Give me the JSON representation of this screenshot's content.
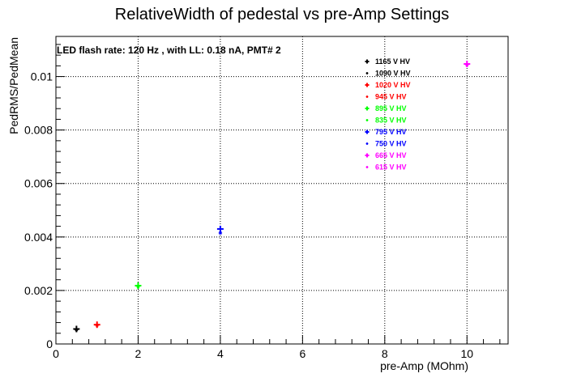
{
  "chart_data": {
    "type": "scatter",
    "title": "RelativeWidth of pedestal vs pre-Amp Settings",
    "annotation": "LED flash rate: 120 Hz , with LL: 0.18 nA, PMT# 2",
    "xlabel": "pre-Amp (MOhm)",
    "ylabel": "PedRMS/PedMean",
    "xlim": [
      0,
      11
    ],
    "ylim": [
      0,
      0.0115
    ],
    "xticks": [
      0,
      2,
      4,
      6,
      8,
      10
    ],
    "xtick_labels": [
      "0",
      "2",
      "4",
      "6",
      "8",
      "10"
    ],
    "yticks": [
      0,
      0.002,
      0.004,
      0.006,
      0.008,
      0.01
    ],
    "ytick_labels": [
      "0",
      "0.002",
      "0.004",
      "0.006",
      "0.008",
      "0.01"
    ],
    "grid": true,
    "legend_position": "top-right",
    "series": [
      {
        "name": "1165 V HV",
        "color": "#000000",
        "marker": "plus",
        "x": [
          0.5
        ],
        "y": [
          0.00056
        ]
      },
      {
        "name": "1090 V HV",
        "color": "#000000",
        "marker": "star",
        "x": [
          0.5
        ],
        "y": [
          0.00053
        ]
      },
      {
        "name": "1020 V HV",
        "color": "#ff0000",
        "marker": "plus",
        "x": [
          1
        ],
        "y": [
          0.00072
        ]
      },
      {
        "name": "945 V HV",
        "color": "#ff0000",
        "marker": "star",
        "x": [
          1
        ],
        "y": [
          0.0007
        ]
      },
      {
        "name": "895 V HV",
        "color": "#00ff00",
        "marker": "plus",
        "x": [
          2
        ],
        "y": [
          0.00218
        ]
      },
      {
        "name": "835 V HV",
        "color": "#00ff00",
        "marker": "star",
        "x": [
          2
        ],
        "y": [
          0.00215
        ]
      },
      {
        "name": "795 V HV",
        "color": "#0000ff",
        "marker": "plus",
        "x": [
          4
        ],
        "y": [
          0.0043
        ]
      },
      {
        "name": "750 V HV",
        "color": "#0000ff",
        "marker": "star",
        "x": [
          4
        ],
        "y": [
          0.00415
        ]
      },
      {
        "name": "665 V HV",
        "color": "#ff00ff",
        "marker": "plus",
        "x": [
          10
        ],
        "y": [
          0.01047
        ]
      },
      {
        "name": "615 V HV",
        "color": "#ff00ff",
        "marker": "star",
        "x": [
          10
        ],
        "y": [
          0.01044
        ]
      }
    ]
  }
}
